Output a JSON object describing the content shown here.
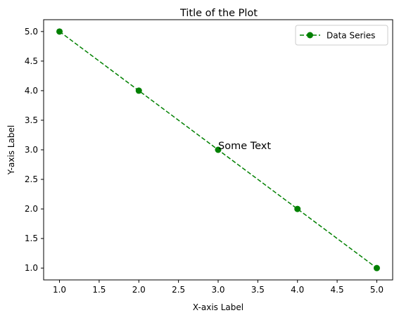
{
  "chart_data": {
    "type": "line",
    "title": "Title of the Plot",
    "xlabel": "X-axis Label",
    "ylabel": "Y-axis Label",
    "xlim": [
      0.8,
      5.2
    ],
    "ylim": [
      0.8,
      5.2
    ],
    "xticks": [
      "1.0",
      "1.5",
      "2.0",
      "2.5",
      "3.0",
      "3.5",
      "4.0",
      "4.5",
      "5.0"
    ],
    "yticks": [
      "1.0",
      "1.5",
      "2.0",
      "2.5",
      "3.0",
      "3.5",
      "4.0",
      "4.5",
      "5.0"
    ],
    "grid": false,
    "legend_position": "top-right",
    "series": [
      {
        "name": "Data Series",
        "color": "#008000",
        "line_style": "dashed",
        "marker": "circle",
        "x": [
          1,
          2,
          3,
          4,
          5
        ],
        "y": [
          5,
          4,
          3,
          2,
          1
        ]
      }
    ],
    "annotations": [
      {
        "text": "Some Text",
        "x": 3,
        "y": 3
      }
    ]
  }
}
